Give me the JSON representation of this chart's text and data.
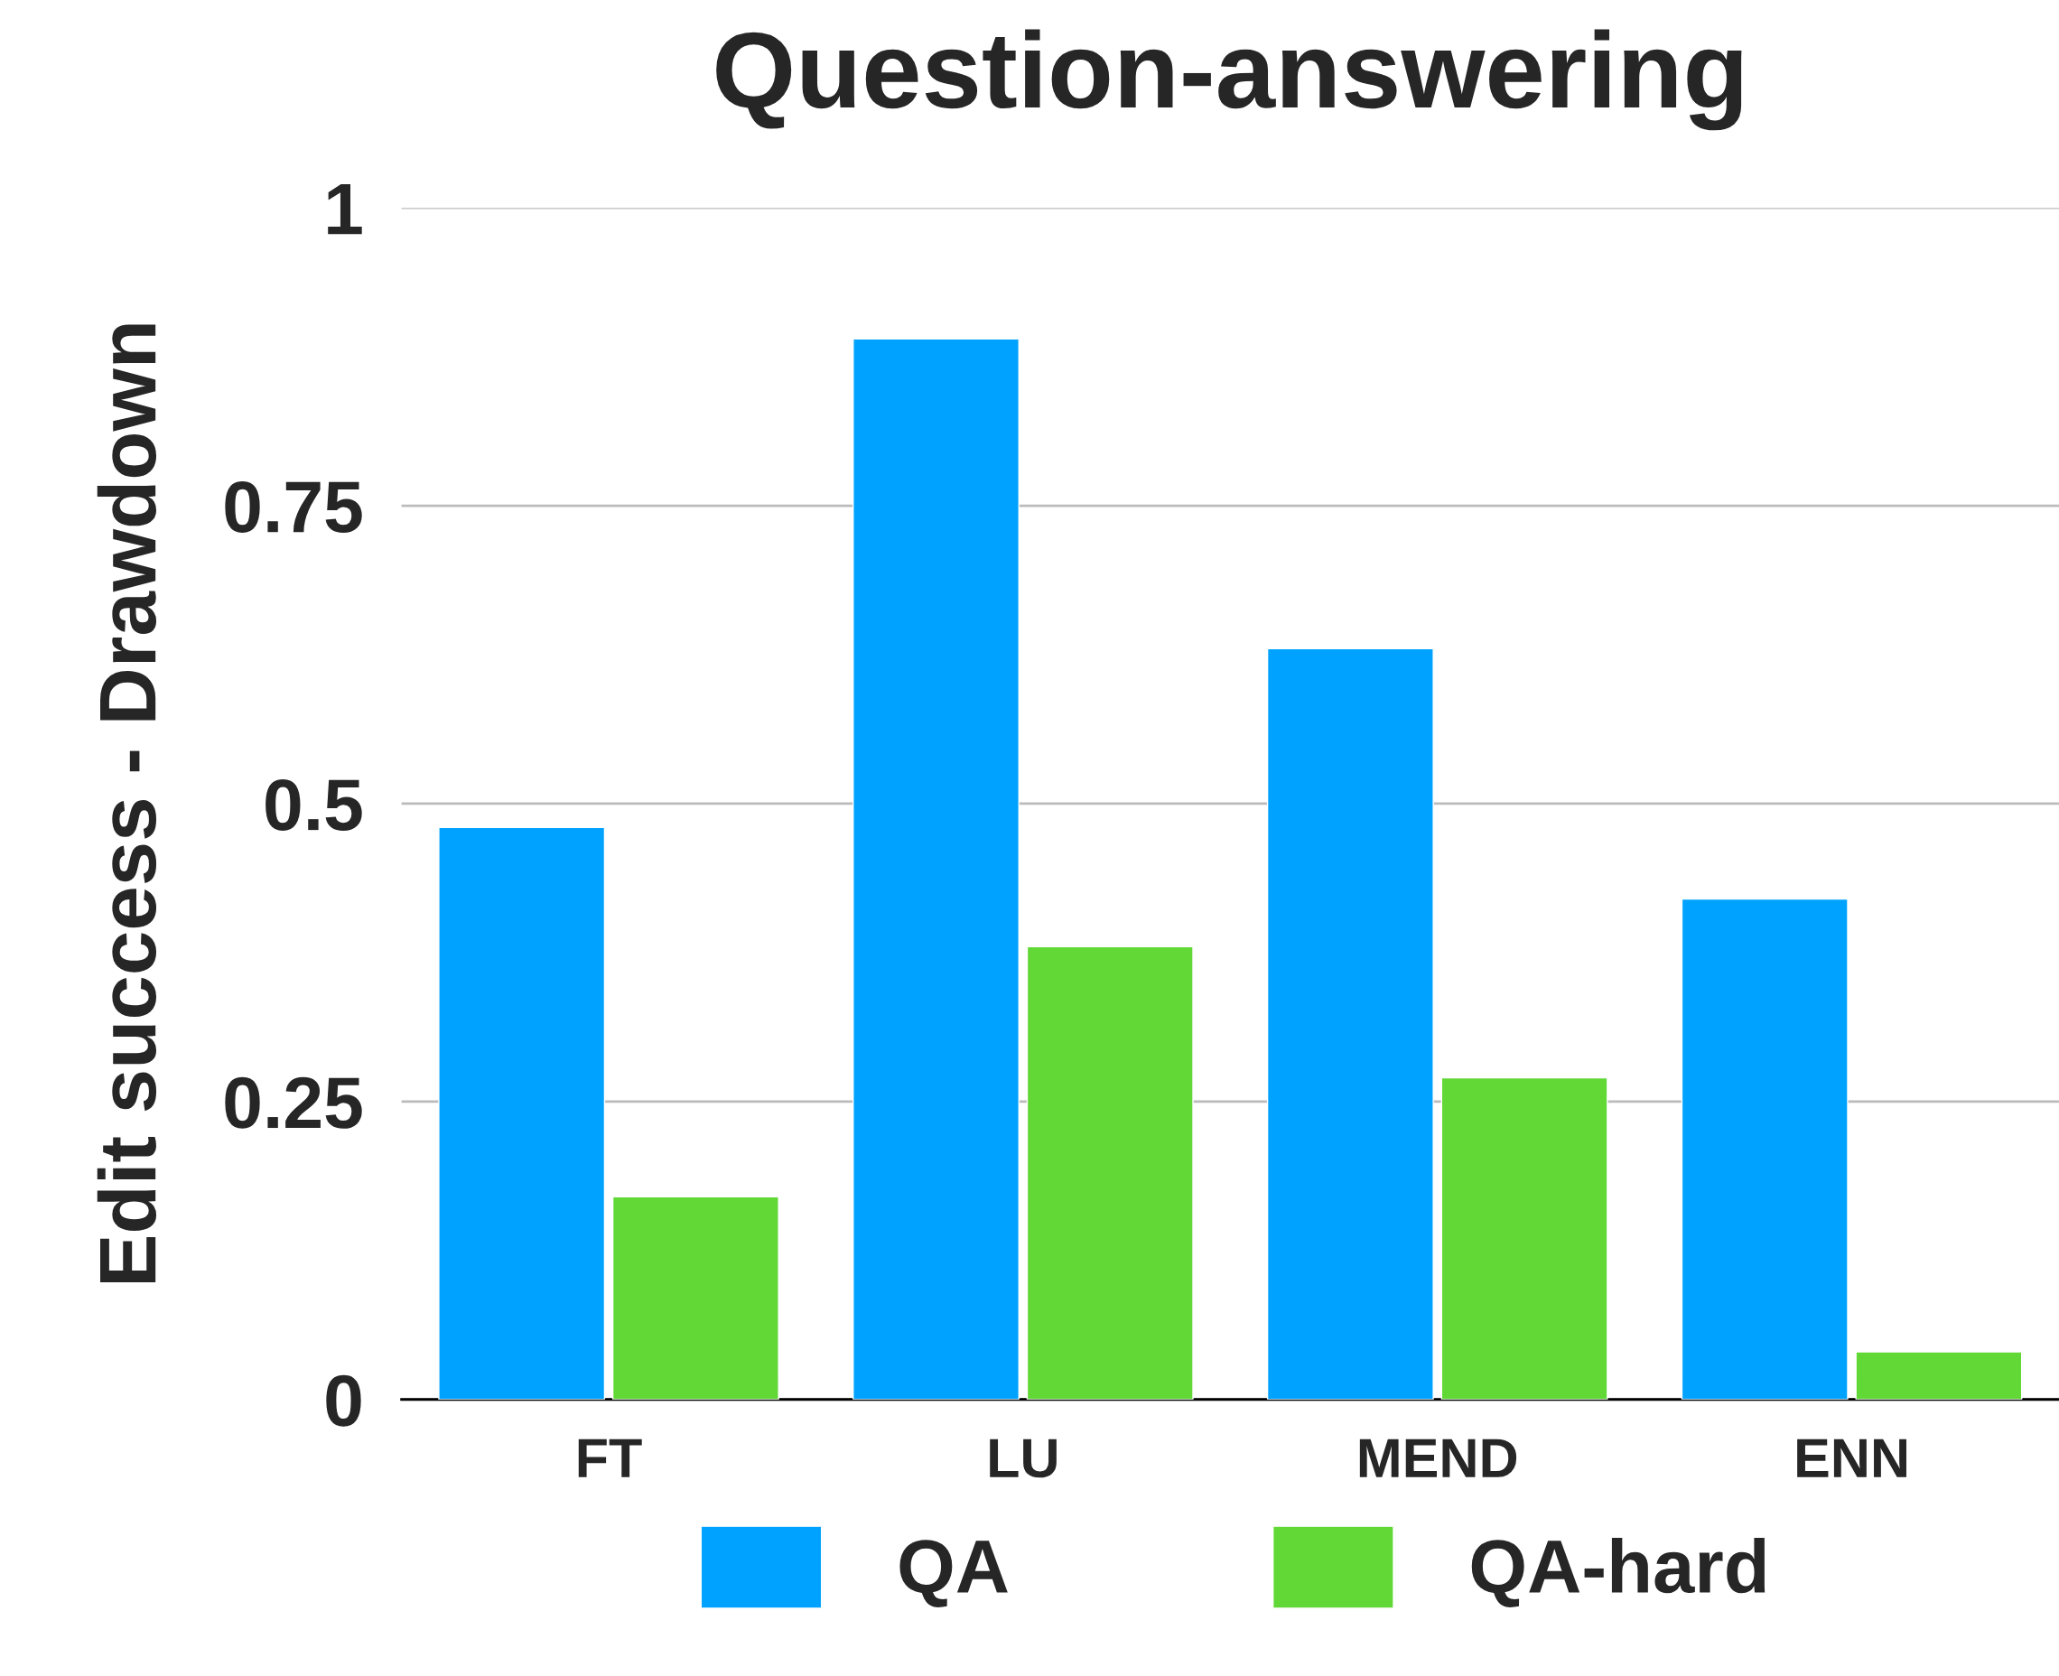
{
  "chart_data": {
    "type": "bar",
    "title": "Question-answering",
    "ylabel": "Edit success - Drawdown",
    "categories": [
      "FT",
      "LU",
      "MEND",
      "ENN"
    ],
    "series": [
      {
        "name": "QA",
        "color": "#00a2ff",
        "values": [
          0.48,
          0.89,
          0.63,
          0.42
        ]
      },
      {
        "name": "QA-hard",
        "color": "#61d836",
        "values": [
          0.17,
          0.38,
          0.27,
          0.04
        ]
      }
    ],
    "ylim": [
      0,
      1
    ],
    "yticks": [
      0,
      0.25,
      0.5,
      0.75,
      1
    ],
    "grid": "y",
    "legend": "bottom"
  }
}
